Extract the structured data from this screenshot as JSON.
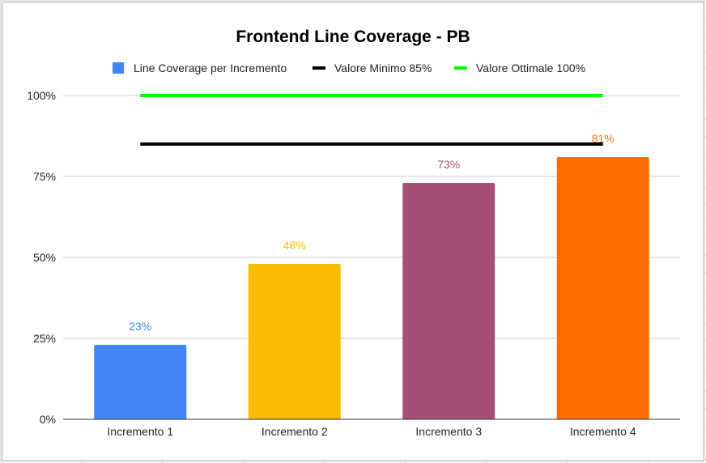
{
  "chart_data": {
    "type": "bar",
    "title": "Frontend Line Coverage - PB",
    "categories": [
      "Incremento 1",
      "Incremento 2",
      "Incremento 3",
      "Incremento 4"
    ],
    "series": [
      {
        "name": "Line Coverage per Incremento",
        "values": [
          23,
          48,
          73,
          81
        ],
        "value_labels": [
          "23%",
          "48%",
          "73%",
          "81%"
        ],
        "colors": [
          "#4285f4",
          "#fbbc04",
          "#a64d79",
          "#ff6d01"
        ]
      }
    ],
    "reference_lines": [
      {
        "name": "Valore Minimo 85%",
        "value": 85,
        "color": "#000000"
      },
      {
        "name": "Valore Ottimale 100%",
        "value": 100,
        "color": "#00ff00"
      }
    ],
    "legend_swatch_color": "#4285f4",
    "ylim": [
      0,
      100
    ],
    "yticks": [
      0,
      25,
      50,
      75,
      100
    ],
    "ytick_labels": [
      "0%",
      "25%",
      "50%",
      "75%",
      "100%"
    ],
    "grid": true,
    "legend_position": "top"
  }
}
